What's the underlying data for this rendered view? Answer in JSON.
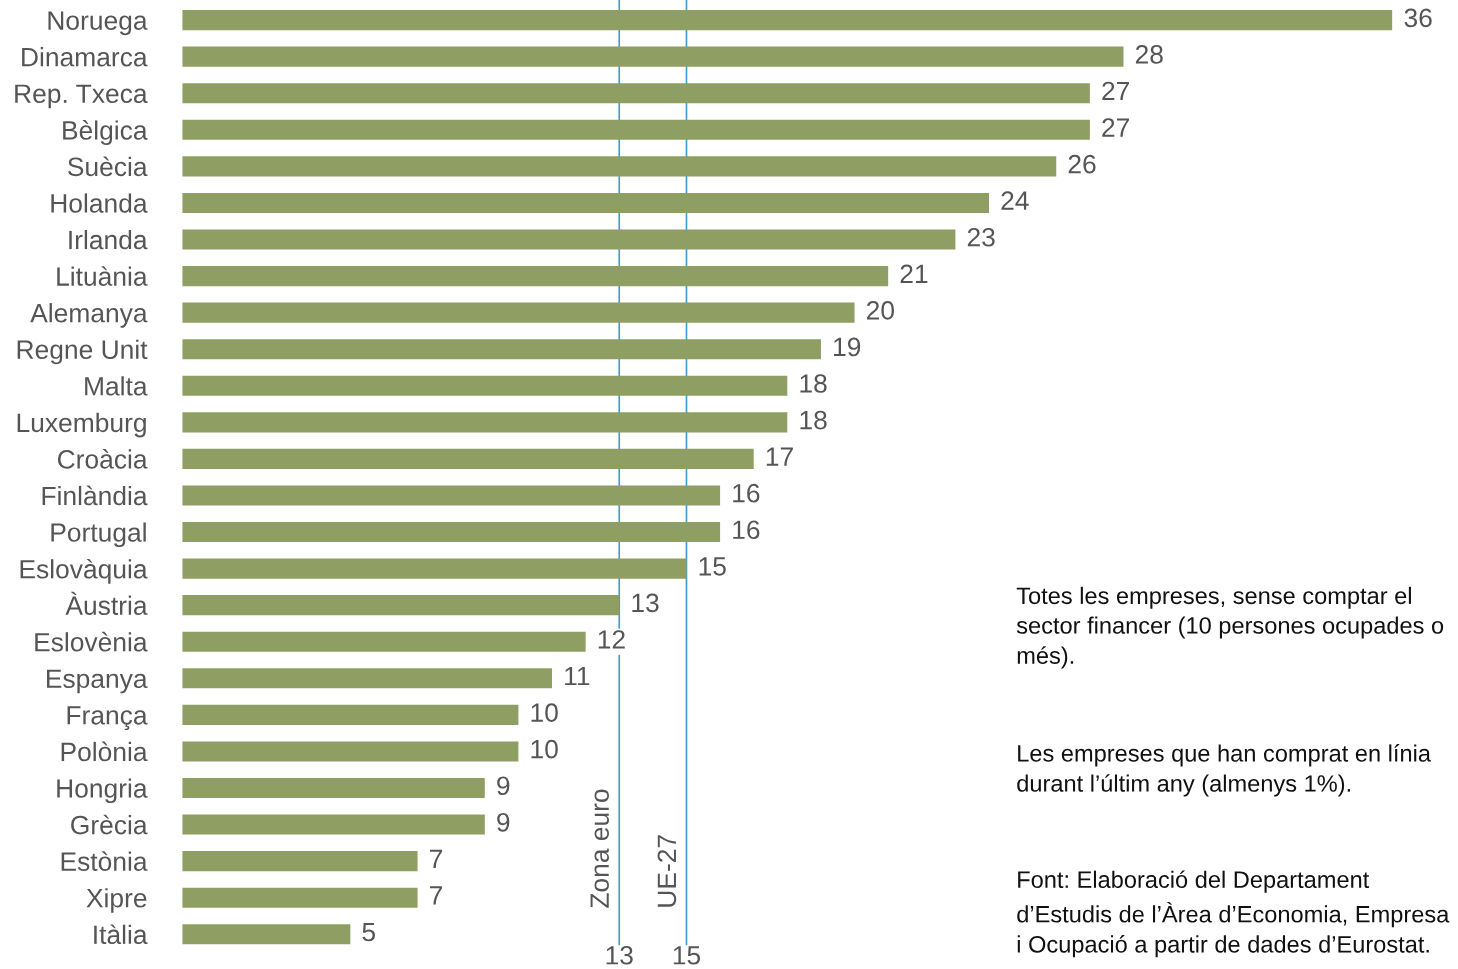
{
  "chart_data": {
    "type": "bar",
    "orientation": "horizontal",
    "categories": [
      "Noruega",
      "Dinamarca",
      "Rep. Txeca",
      "Bèlgica",
      "Suècia",
      "Holanda",
      "Irlanda",
      "Lituània",
      "Alemanya",
      "Regne Unit",
      "Malta",
      "Luxemburg",
      "Croàcia",
      "Finlàndia",
      "Portugal",
      "Eslovàquia",
      "Àustria",
      "Eslovènia",
      "Espanya",
      "França",
      "Polònia",
      "Hongria",
      "Grècia",
      "Estònia",
      "Xipre",
      "Itàlia"
    ],
    "values": [
      36,
      28,
      27,
      27,
      26,
      24,
      23,
      21,
      20,
      19,
      18,
      18,
      17,
      16,
      16,
      15,
      13,
      12,
      11,
      10,
      10,
      9,
      9,
      7,
      7,
      5
    ],
    "color": "#8f9e62",
    "data_labels": true,
    "xlim": [
      0,
      36
    ],
    "tick_labels": "y",
    "grid": false,
    "ref_lines": [
      {
        "axis": "x",
        "value": 13,
        "label": "Zona euro",
        "color": "#3a9fd6"
      },
      {
        "axis": "x",
        "value": 15,
        "label": "UE-27",
        "color": "#3a9fd6"
      }
    ],
    "annotations": [
      {
        "text": "13",
        "x": 13,
        "y": "Itàlia"
      },
      {
        "text": "15",
        "x": 15,
        "y": "Itàlia"
      },
      "Totes les empreses, sense comptar el sector financer (10 persones ocupades o més).",
      "Les empreses que han comprat en línia durant l’últim any (almenys 1%).",
      "Font: Elaboració del Departament d’Estudis de l’Àrea d’Economia, Empresa i Ocupació a partir de dades d’Eurostat."
    ]
  }
}
